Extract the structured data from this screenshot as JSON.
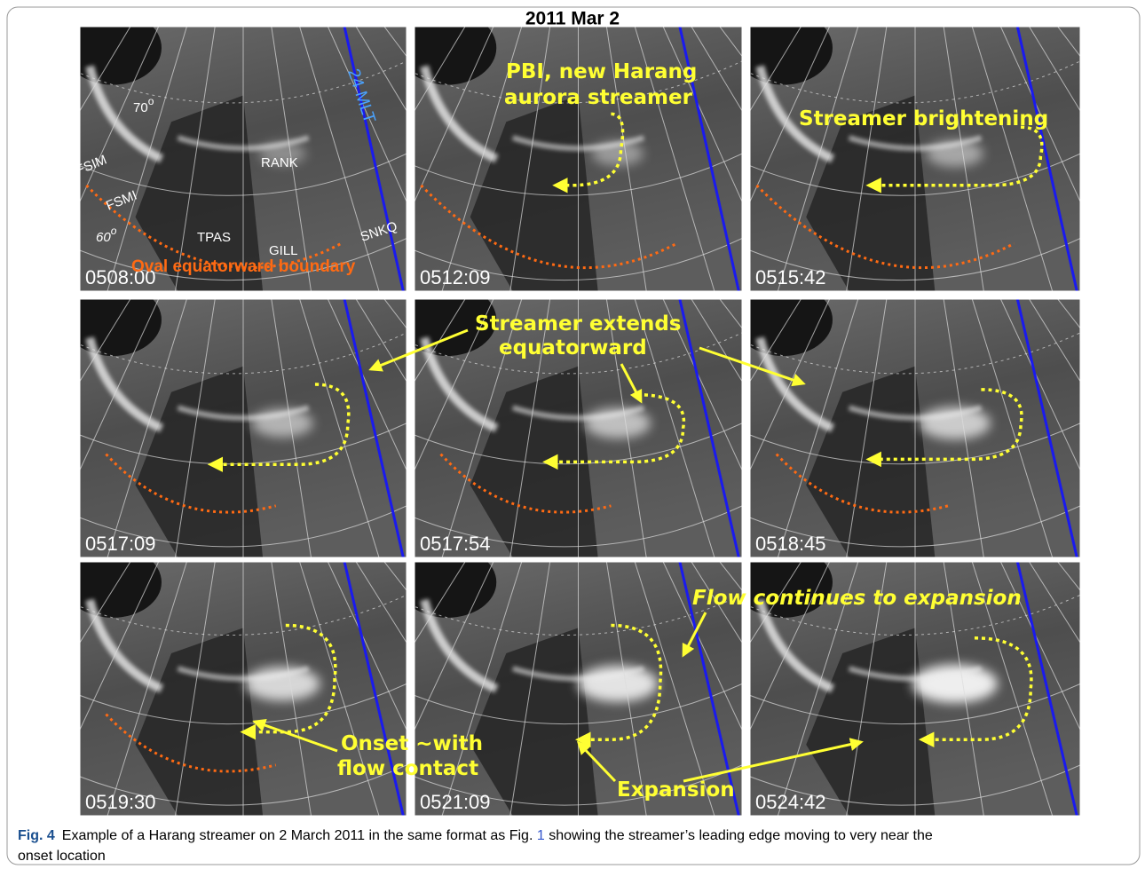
{
  "figure": {
    "title": "2011 Mar 2",
    "panels": [
      {
        "time": "0508:00"
      },
      {
        "time": "0512:09"
      },
      {
        "time": "0515:42"
      },
      {
        "time": "0517:09"
      },
      {
        "time": "0517:54"
      },
      {
        "time": "0518:45"
      },
      {
        "time": "0519:30"
      },
      {
        "time": "0521:09"
      },
      {
        "time": "0524:42"
      }
    ],
    "panel1_labels": {
      "lat70": {
        "text": "70",
        "sup": "o"
      },
      "lat60": {
        "text": "60",
        "sup": "o"
      },
      "mlt": "24 MLT",
      "stations": [
        "FSIM",
        "FSMI",
        "TPAS",
        "GILL",
        "RANK",
        "SNKQ"
      ],
      "boundary": "Oval equatorward boundary"
    },
    "annotations": {
      "pbi": [
        "PBI, new Harang",
        "aurora streamer"
      ],
      "brightening": "Streamer brightening",
      "extends": [
        "Streamer extends",
        "equatorward"
      ],
      "onset": [
        "Onset ~with",
        "flow contact"
      ],
      "expansion": "Expansion",
      "flow": "Flow continues to expansion"
    },
    "caption": {
      "label": "Fig. 4",
      "line1a": "Example of a Harang streamer on 2 March 2011 in the same format as Fig. ",
      "ref": "1",
      "line1b": " showing the streamer’s leading edge moving to very near the",
      "line2": "onset location"
    }
  }
}
